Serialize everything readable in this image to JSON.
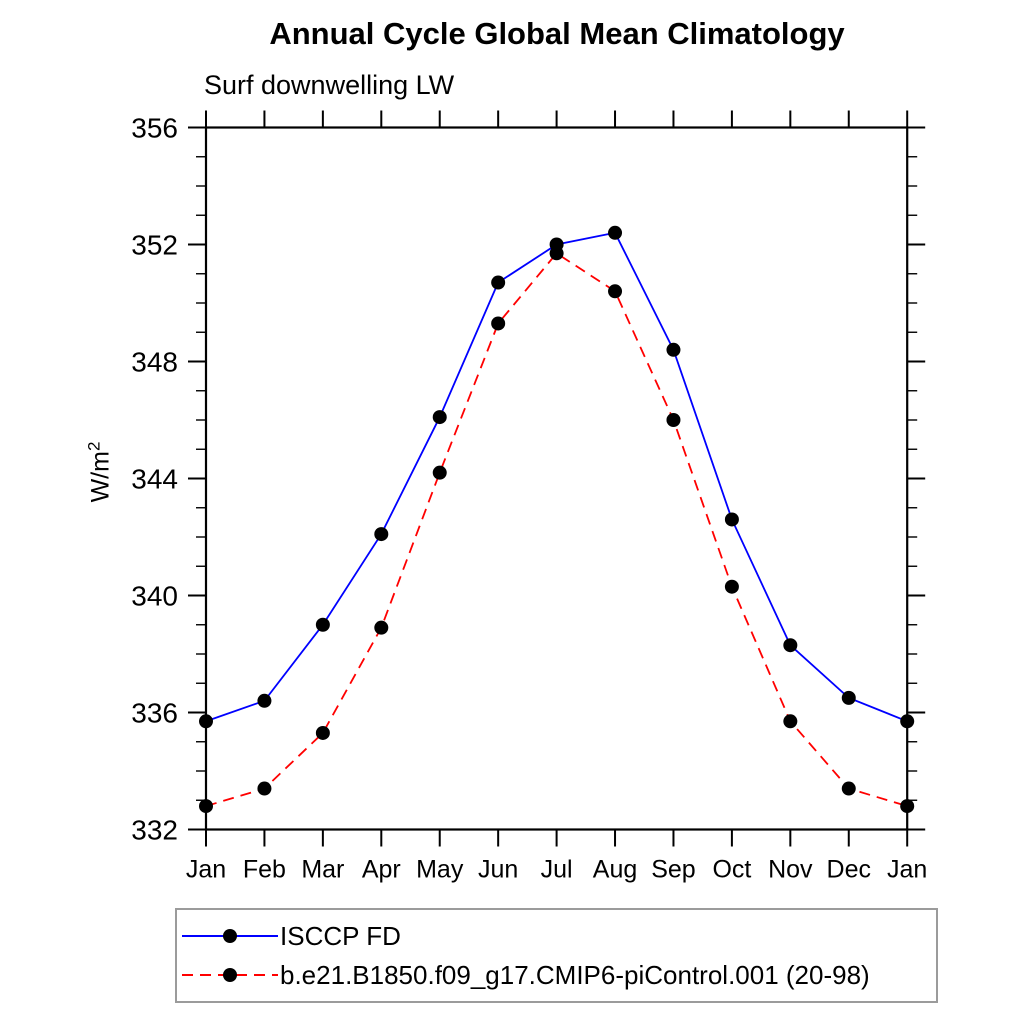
{
  "chart_data": {
    "type": "line",
    "title": "Annual Cycle Global Mean Climatology",
    "subtitle": "Surf downwelling LW",
    "ylabel_base": "W/m",
    "ylabel_exponent": "2",
    "categories": [
      "Jan",
      "Feb",
      "Mar",
      "Apr",
      "May",
      "Jun",
      "Jul",
      "Aug",
      "Sep",
      "Oct",
      "Nov",
      "Dec",
      "Jan"
    ],
    "ylim": [
      332,
      356
    ],
    "ytick_major_step": 4,
    "ytick_minor_step": 1,
    "yticks_major": [
      332,
      336,
      340,
      344,
      348,
      352,
      356
    ],
    "grid": false,
    "legend_position": "bottom-left",
    "axis_color": "#000000",
    "marker": "filled-circle",
    "marker_color": "#000000",
    "series": [
      {
        "name": "ISCCP FD",
        "color": "#0000ff",
        "line_style": "solid",
        "values": [
          335.7,
          336.4,
          339.0,
          342.1,
          346.1,
          350.7,
          352.0,
          352.4,
          348.4,
          342.6,
          338.3,
          336.5,
          335.7
        ]
      },
      {
        "name": "b.e21.B1850.f09_g17.CMIP6-piControl.001 (20-98)",
        "color": "#ff0000",
        "line_style": "dashed",
        "values": [
          332.8,
          333.4,
          335.3,
          338.9,
          344.2,
          349.3,
          351.7,
          350.4,
          346.0,
          340.3,
          335.7,
          333.4,
          332.8
        ]
      }
    ]
  }
}
